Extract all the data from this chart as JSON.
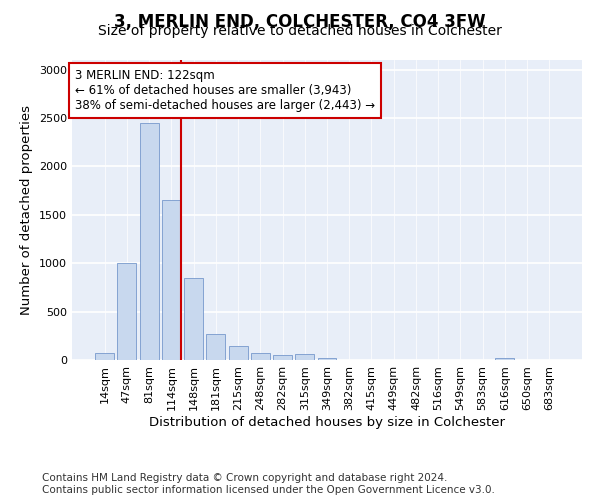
{
  "title": "3, MERLIN END, COLCHESTER, CO4 3FW",
  "subtitle": "Size of property relative to detached houses in Colchester",
  "xlabel": "Distribution of detached houses by size in Colchester",
  "ylabel": "Number of detached properties",
  "bar_labels": [
    "14sqm",
    "47sqm",
    "81sqm",
    "114sqm",
    "148sqm",
    "181sqm",
    "215sqm",
    "248sqm",
    "282sqm",
    "315sqm",
    "349sqm",
    "382sqm",
    "415sqm",
    "449sqm",
    "482sqm",
    "516sqm",
    "549sqm",
    "583sqm",
    "616sqm",
    "650sqm",
    "683sqm"
  ],
  "bar_values": [
    75,
    1000,
    2450,
    1650,
    850,
    270,
    140,
    75,
    55,
    60,
    20,
    5,
    0,
    0,
    0,
    0,
    0,
    0,
    20,
    0,
    5
  ],
  "bar_color": "#c8d8ee",
  "bar_edge_color": "#7799cc",
  "vline_color": "#cc0000",
  "annotation_line1": "3 MERLIN END: 122sqm",
  "annotation_line2": "← 61% of detached houses are smaller (3,943)",
  "annotation_line3": "38% of semi-detached houses are larger (2,443) →",
  "annotation_box_color": "#ffffff",
  "annotation_box_edge_color": "#cc0000",
  "ylim": [
    0,
    3100
  ],
  "yticks": [
    0,
    500,
    1000,
    1500,
    2000,
    2500,
    3000
  ],
  "footer_line1": "Contains HM Land Registry data © Crown copyright and database right 2024.",
  "footer_line2": "Contains public sector information licensed under the Open Government Licence v3.0.",
  "background_color": "#ffffff",
  "plot_bg_color": "#e8eef8",
  "grid_color": "#ffffff",
  "title_fontsize": 12,
  "subtitle_fontsize": 10,
  "axis_label_fontsize": 9.5,
  "tick_fontsize": 8,
  "annotation_fontsize": 8.5,
  "footer_fontsize": 7.5
}
